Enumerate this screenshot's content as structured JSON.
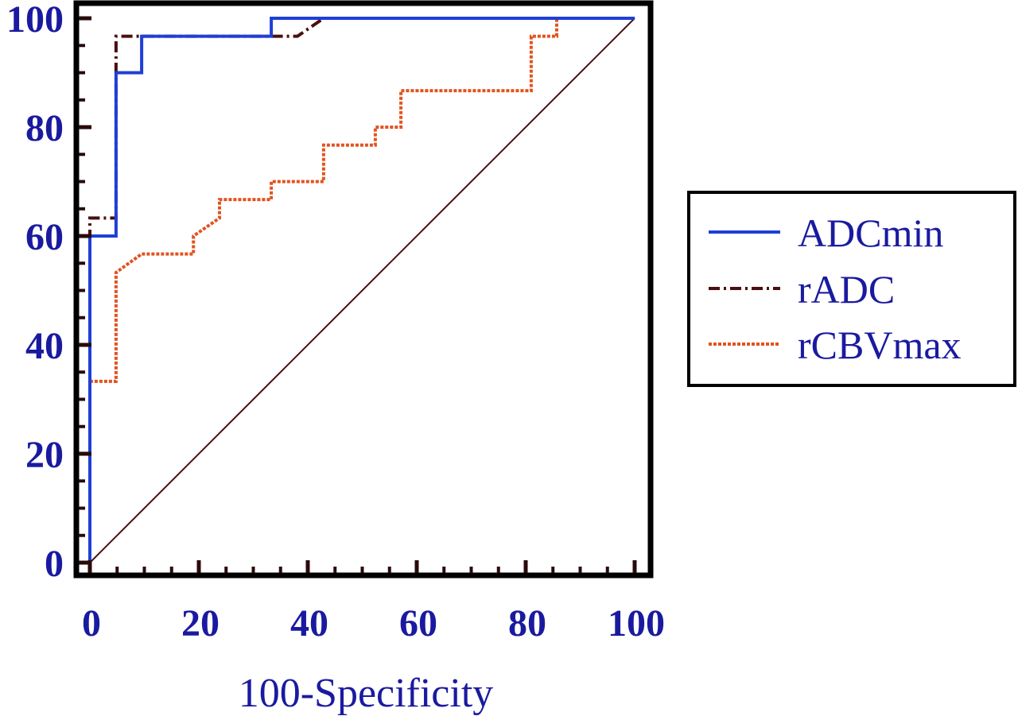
{
  "chart_data": {
    "type": "line",
    "xlabel": "100-Specificity",
    "ylabel": "",
    "xlim": [
      0,
      100
    ],
    "ylim": [
      0,
      100
    ],
    "x_ticks": [
      "0",
      "20",
      "40",
      "60",
      "80",
      "100"
    ],
    "y_ticks": [
      "0",
      "20",
      "40",
      "60",
      "80",
      "100"
    ],
    "grid": false,
    "legend_position": "right",
    "series": [
      {
        "name": "ADCmin",
        "color": "#1f3fd6",
        "style": "solid",
        "x": [
          0,
          0,
          4.8,
          4.8,
          9.5,
          9.5,
          33.3,
          33.3,
          100
        ],
        "y": [
          0,
          60,
          60,
          90,
          90,
          96.7,
          96.7,
          100,
          100
        ]
      },
      {
        "name": "rADC",
        "color": "#4a0f0f",
        "style": "dashdot",
        "x": [
          0,
          0,
          4.8,
          4.8,
          38.1,
          42.9,
          100
        ],
        "y": [
          0,
          63.3,
          63.3,
          96.7,
          96.7,
          100,
          100
        ]
      },
      {
        "name": "rCBVmax",
        "color": "#e0541f",
        "style": "dotted",
        "x": [
          0,
          0,
          4.8,
          4.8,
          9.5,
          19.0,
          19.0,
          23.8,
          23.8,
          33.3,
          33.3,
          42.9,
          42.9,
          52.4,
          52.4,
          57.1,
          57.1,
          81.0,
          81.0,
          85.7,
          85.7,
          100
        ],
        "y": [
          0,
          33.3,
          33.3,
          53.3,
          56.7,
          56.7,
          60.0,
          63.3,
          66.7,
          66.7,
          70.0,
          70.0,
          76.7,
          76.7,
          80.0,
          80.0,
          86.7,
          86.7,
          96.7,
          96.7,
          100,
          100
        ]
      }
    ],
    "reference_line": {
      "x": [
        0,
        100
      ],
      "y": [
        0,
        100
      ],
      "color": "#4a0f0f"
    }
  }
}
